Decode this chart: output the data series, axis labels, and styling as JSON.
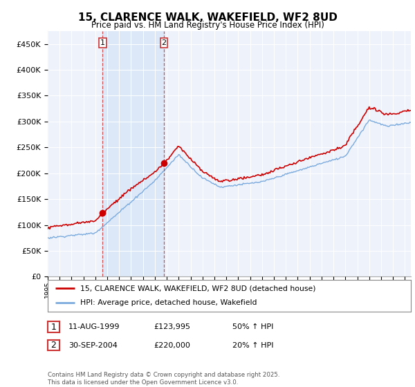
{
  "title": "15, CLARENCE WALK, WAKEFIELD, WF2 8UD",
  "subtitle": "Price paid vs. HM Land Registry's House Price Index (HPI)",
  "legend_line1": "15, CLARENCE WALK, WAKEFIELD, WF2 8UD (detached house)",
  "legend_line2": "HPI: Average price, detached house, Wakefield",
  "table_rows": [
    {
      "num": "1",
      "date": "11-AUG-1999",
      "price": "£123,995",
      "note": "50% ↑ HPI"
    },
    {
      "num": "2",
      "date": "30-SEP-2004",
      "price": "£220,000",
      "note": "20% ↑ HPI"
    }
  ],
  "footnote": "Contains HM Land Registry data © Crown copyright and database right 2025.\nThis data is licensed under the Open Government Licence v3.0.",
  "red_line_color": "#cc0000",
  "blue_line_color": "#7aaadd",
  "shade_color": "#dce8f8",
  "sale1_year": 1999.614,
  "sale1_price": 123995,
  "sale2_year": 2004.747,
  "sale2_price": 220000,
  "ylim_max": 475000,
  "ylim_min": 0,
  "xlim_min": 1995,
  "xlim_max": 2025.5,
  "background_color": "#ffffff",
  "plot_bg_color": "#eef2fb"
}
